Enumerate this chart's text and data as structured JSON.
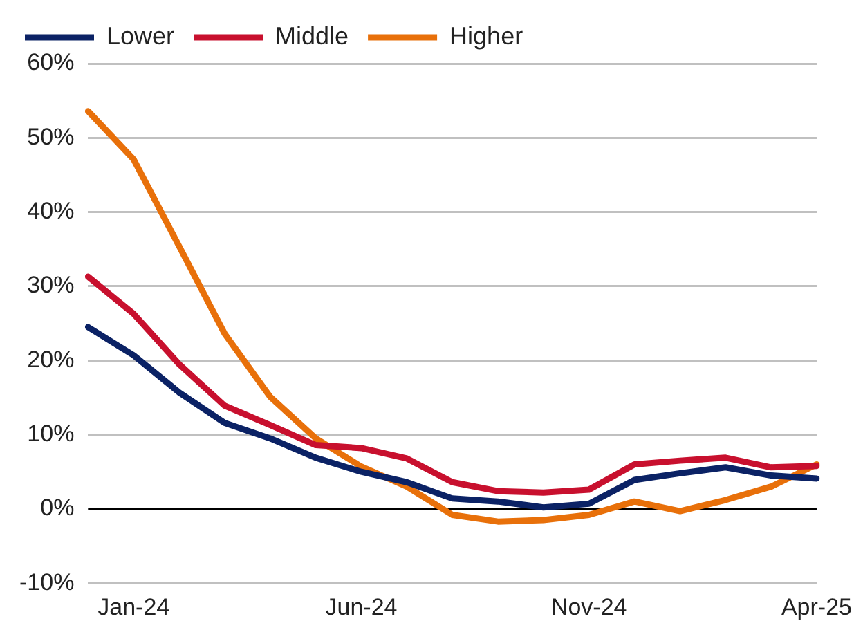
{
  "chart_data": {
    "type": "line",
    "categories": [
      null,
      "Jan-24",
      null,
      null,
      null,
      null,
      "Jun-24",
      null,
      null,
      null,
      null,
      "Nov-24",
      null,
      null,
      null,
      null,
      "Apr-25"
    ],
    "series": [
      {
        "name": "Lower",
        "color": "#0b2265",
        "values": [
          24.5,
          20.7,
          15.7,
          11.6,
          9.5,
          6.9,
          5.0,
          3.6,
          1.4,
          1.0,
          0.2,
          0.7,
          3.9,
          4.8,
          5.6,
          4.5,
          4.1
        ]
      },
      {
        "name": "Middle",
        "color": "#c8102e",
        "values": [
          31.3,
          26.3,
          19.5,
          13.9,
          11.3,
          8.6,
          8.2,
          6.8,
          3.6,
          2.4,
          2.2,
          2.6,
          6.0,
          6.5,
          6.9,
          5.6,
          5.8
        ]
      },
      {
        "name": "Higher",
        "color": "#e8700a",
        "values": [
          53.6,
          47.1,
          35.4,
          23.6,
          15.1,
          9.5,
          5.7,
          3.0,
          -0.8,
          -1.7,
          -1.5,
          -0.8,
          1.0,
          -0.3,
          1.2,
          3.0,
          6.0
        ]
      }
    ],
    "ylim": [
      -10,
      60
    ],
    "yticks": [
      {
        "value": -10,
        "label": "-10%"
      },
      {
        "value": 0,
        "label": "0%"
      },
      {
        "value": 10,
        "label": "10%"
      },
      {
        "value": 20,
        "label": "20%"
      },
      {
        "value": 30,
        "label": "30%"
      },
      {
        "value": 40,
        "label": "40%"
      },
      {
        "value": 50,
        "label": "50%"
      },
      {
        "value": 60,
        "label": "60%"
      }
    ],
    "ref_lines": [
      {
        "axis": "y",
        "value": 0,
        "color": "#000000"
      }
    ],
    "grid": "y",
    "legend": "top left",
    "marker": "none",
    "line_style": "solid"
  }
}
